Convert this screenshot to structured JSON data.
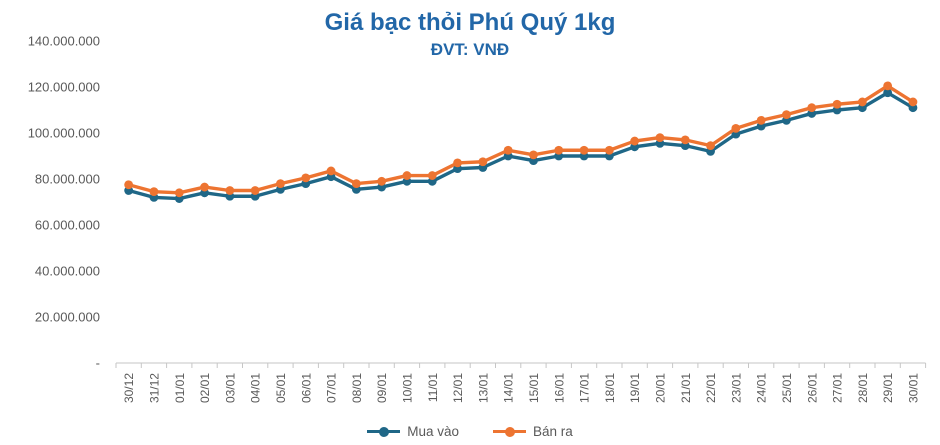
{
  "header": {
    "title": "Giá bạc thỏi Phú Quý 1kg",
    "subtitle": "ĐVT: VNĐ",
    "title_color": "#2267A8"
  },
  "chart_data": {
    "type": "line",
    "title": "Giá bạc thỏi Phú Quý 1kg",
    "subtitle": "ĐVT: VNĐ",
    "xlabel": "",
    "ylabel": "VNĐ",
    "grid": false,
    "legend_position": "bottom",
    "ylim": [
      0,
      140000000
    ],
    "axis_color": "#C6C6C6",
    "text_color": "#595959",
    "y_ticks": [
      {
        "value": 140000000,
        "label": "140.000.000"
      },
      {
        "value": 120000000,
        "label": "120.000.000"
      },
      {
        "value": 100000000,
        "label": "100.000.000"
      },
      {
        "value": 80000000,
        "label": "80.000.000"
      },
      {
        "value": 60000000,
        "label": "60.000.000"
      },
      {
        "value": 40000000,
        "label": "40.000.000"
      },
      {
        "value": 20000000,
        "label": "20.000.000"
      },
      {
        "value": 0,
        "label": "-"
      }
    ],
    "categories": [
      "30/12",
      "31/12",
      "01/01",
      "02/01",
      "03/01",
      "04/01",
      "05/01",
      "06/01",
      "07/01",
      "08/01",
      "09/01",
      "10/01",
      "11/01",
      "12/01",
      "13/01",
      "14/01",
      "15/01",
      "16/01",
      "17/01",
      "18/01",
      "19/01",
      "20/01",
      "21/01",
      "22/01",
      "23/01",
      "24/01",
      "25/01",
      "26/01",
      "27/01",
      "28/01",
      "29/01",
      "30/01"
    ],
    "series": [
      {
        "id": "mua-vao",
        "name": "Mua vào",
        "color": "#1F6787",
        "values": [
          75000000,
          72000000,
          71500000,
          74000000,
          72500000,
          72500000,
          75500000,
          78000000,
          81000000,
          75500000,
          76500000,
          79000000,
          79000000,
          84500000,
          85000000,
          90000000,
          88000000,
          90000000,
          90000000,
          90000000,
          94000000,
          95500000,
          94500000,
          92000000,
          99500000,
          103000000,
          105500000,
          108500000,
          110000000,
          111000000,
          117500000,
          111000000
        ]
      },
      {
        "id": "ban-ra",
        "name": "Bán ra",
        "color": "#ED7431",
        "values": [
          77500000,
          74500000,
          74000000,
          76500000,
          75000000,
          75000000,
          78000000,
          80500000,
          83500000,
          78000000,
          79000000,
          81500000,
          81500000,
          87000000,
          87500000,
          92500000,
          90500000,
          92500000,
          92500000,
          92500000,
          96500000,
          98000000,
          97000000,
          94500000,
          102000000,
          105500000,
          108000000,
          111000000,
          112500000,
          113500000,
          120500000,
          113500000
        ]
      }
    ]
  }
}
